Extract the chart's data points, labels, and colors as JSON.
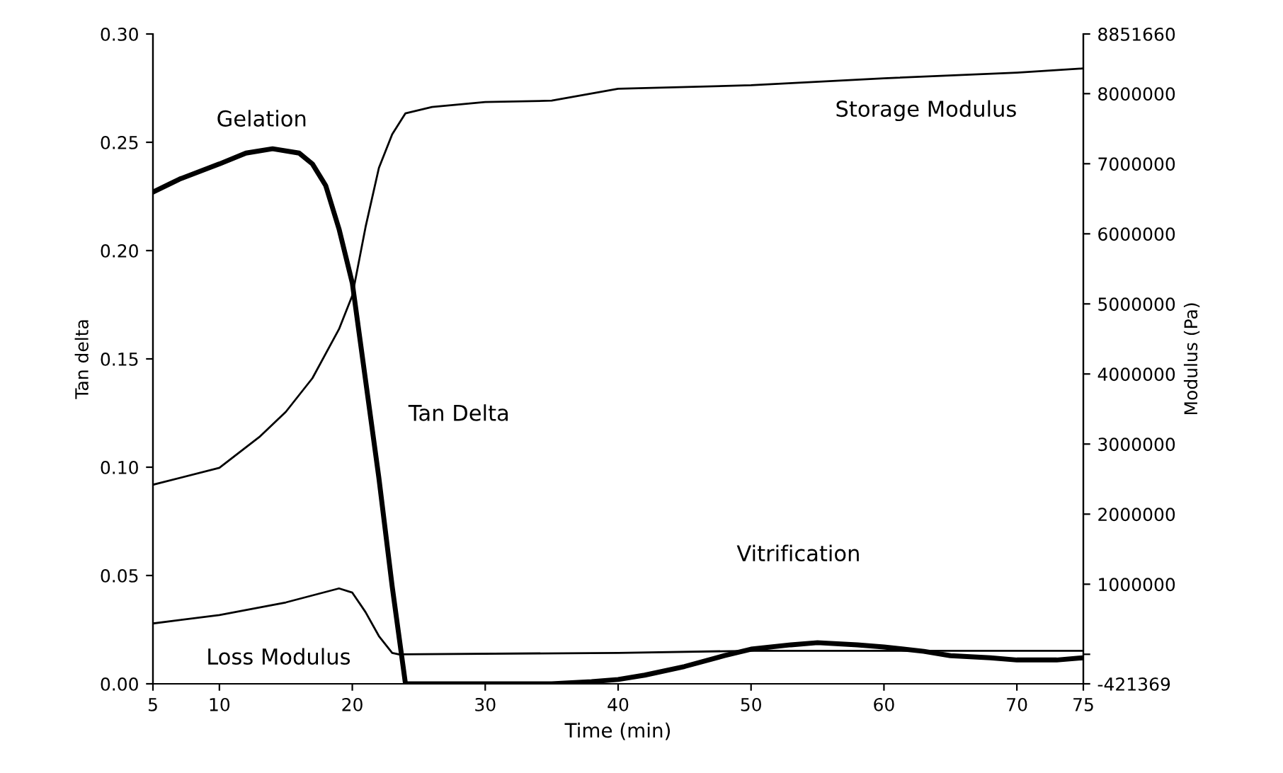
{
  "chart_data": {
    "type": "line",
    "xlabel": "Time (min)",
    "ylabel": "Tan delta",
    "y2label": "Modulus (Pa)",
    "xlim": [
      5,
      75
    ],
    "xticks": [
      5,
      10,
      20,
      30,
      40,
      50,
      60,
      70,
      75
    ],
    "ylim": [
      0,
      0.3
    ],
    "yticks": [
      {
        "value": 0,
        "label": "0.00"
      },
      0.05,
      {
        "value": 0.1,
        "label": "0.10"
      },
      0.15,
      {
        "value": 0.2,
        "label": "0.20"
      },
      0.25,
      {
        "value": 0.3,
        "label": "0.30"
      }
    ],
    "y2lim": [
      -421369,
      8851660
    ],
    "y2ticks": [
      -421369,
      {
        "value": 0,
        "label": null
      },
      1000000,
      2000000,
      3000000,
      4000000,
      5000000,
      6000000,
      7000000,
      8000000,
      8851660
    ],
    "grid": false,
    "legend": false,
    "marker": "none",
    "series": [
      {
        "name": "Tan Delta",
        "color": "#000000",
        "axis": "y",
        "line_style": "solid",
        "x": [
          5,
          7,
          10,
          12,
          14,
          16,
          17,
          18,
          19,
          20,
          21,
          22,
          23,
          24,
          30,
          35,
          38,
          40,
          42,
          45,
          48,
          50,
          53,
          55,
          58,
          60,
          63,
          65,
          68,
          70,
          73,
          75
        ],
        "values": [
          0.227,
          0.233,
          0.24,
          0.245,
          0.247,
          0.245,
          0.24,
          0.23,
          0.21,
          0.185,
          0.14,
          0.095,
          0.045,
          0.0,
          0.0,
          0.0,
          0.001,
          0.002,
          0.004,
          0.008,
          0.013,
          0.016,
          0.018,
          0.019,
          0.018,
          0.017,
          0.015,
          0.013,
          0.012,
          0.011,
          0.011,
          0.012
        ]
      },
      {
        "name": "Storage Modulus",
        "color": "#000000",
        "axis": "y2",
        "line_style": "solid",
        "x": [
          5,
          10,
          13,
          15,
          17,
          19,
          20,
          21,
          22,
          23,
          24,
          26,
          30,
          35,
          40,
          50,
          60,
          70,
          75
        ],
        "values": [
          2420000,
          2660000,
          3100000,
          3460000,
          3940000,
          4640000,
          5120000,
          6100000,
          6940000,
          7420000,
          7720000,
          7810000,
          7880000,
          7900000,
          8070000,
          8120000,
          8220000,
          8300000,
          8360000
        ]
      },
      {
        "name": "Loss Modulus",
        "color": "#000000",
        "axis": "y2",
        "line_style": "solid",
        "x": [
          5,
          10,
          15,
          19,
          20,
          21,
          22,
          23,
          23.5,
          40,
          50,
          60,
          75
        ],
        "values": [
          440000,
          560000,
          740000,
          940000,
          880000,
          600000,
          260000,
          20000,
          0,
          20000,
          50000,
          50000,
          50000
        ]
      }
    ],
    "annotations": [
      "Gelation",
      "Vitrification"
    ]
  }
}
